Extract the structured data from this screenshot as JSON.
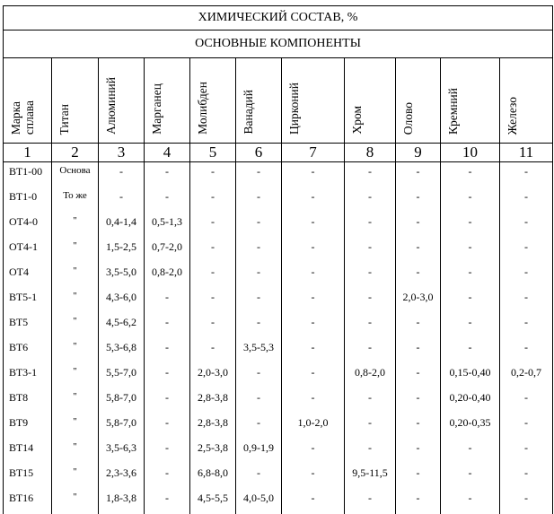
{
  "title": "ХИМИЧЕСКИЙ СОСТАВ, %",
  "subtitle": "ОСНОВНЫЕ КОМПОНЕНТЫ",
  "columns": [
    "Марка\nсплава",
    "Титан",
    "Алюминий",
    "Марганец",
    "Молибден",
    "Ванадий",
    "Цирконий",
    "Хром",
    "Олово",
    "Кремний",
    "Железо"
  ],
  "column_numbers": [
    "1",
    "2",
    "3",
    "4",
    "5",
    "6",
    "7",
    "8",
    "9",
    "10",
    "11"
  ],
  "rows": [
    [
      "ВТ1-00",
      "Основа",
      "-",
      "-",
      "-",
      "-",
      "-",
      "-",
      "-",
      "-",
      "-"
    ],
    [
      "ВТ1-0",
      "То же",
      "-",
      "-",
      "-",
      "-",
      "-",
      "-",
      "-",
      "-",
      "-"
    ],
    [
      "ОТ4-0",
      "\"",
      "0,4-1,4",
      "0,5-1,3",
      "-",
      "-",
      "-",
      "-",
      "-",
      "-",
      "-"
    ],
    [
      "ОТ4-1",
      "\"",
      "1,5-2,5",
      "0,7-2,0",
      "-",
      "-",
      "-",
      "-",
      "-",
      "-",
      "-"
    ],
    [
      "ОТ4",
      "\"",
      "3,5-5,0",
      "0,8-2,0",
      "-",
      "-",
      "-",
      "-",
      "-",
      "-",
      "-"
    ],
    [
      "ВТ5-1",
      "\"",
      "4,3-6,0",
      "-",
      "-",
      "-",
      "-",
      "-",
      "2,0-3,0",
      "-",
      "-"
    ],
    [
      "ВТ5",
      "\"",
      "4,5-6,2",
      "-",
      "-",
      "-",
      "-",
      "-",
      "-",
      "-",
      "-"
    ],
    [
      "ВТ6",
      "\"",
      "5,3-6,8",
      "-",
      "-",
      "3,5-5,3",
      "-",
      "-",
      "-",
      "-",
      "-"
    ],
    [
      "ВТ3-1",
      "\"",
      "5,5-7,0",
      "-",
      "2,0-3,0",
      "-",
      "-",
      "0,8-2,0",
      "-",
      "0,15-0,40",
      "0,2-0,7"
    ],
    [
      "ВТ8",
      "\"",
      "5,8-7,0",
      "-",
      "2,8-3,8",
      "-",
      "-",
      "-",
      "-",
      "0,20-0,40",
      "-"
    ],
    [
      "ВТ9",
      "\"",
      "5,8-7,0",
      "-",
      "2,8-3,8",
      "-",
      "1,0-2,0",
      "-",
      "-",
      "0,20-0,35",
      "-"
    ],
    [
      "ВТ14",
      "\"",
      "3,5-6,3",
      "-",
      "2,5-3,8",
      "0,9-1,9",
      "-",
      "-",
      "-",
      "-",
      "-"
    ],
    [
      "ВТ15",
      "\"",
      "2,3-3,6",
      "-",
      "6,8-8,0",
      "-",
      "-",
      "9,5-11,5",
      "-",
      "-",
      "-"
    ],
    [
      "ВТ16",
      "\"",
      "1,8-3,8",
      "-",
      "4,5-5,5",
      "4,0-5,0",
      "-",
      "-",
      "-",
      "-",
      "-"
    ]
  ]
}
